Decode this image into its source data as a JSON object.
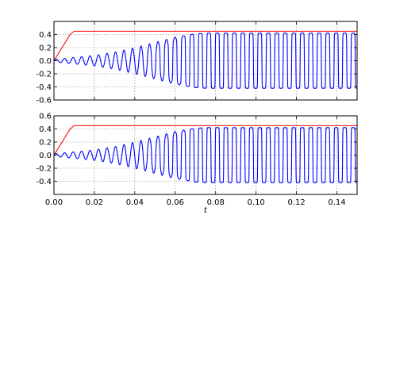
{
  "chart_data": [
    {
      "type": "line",
      "title": "",
      "xlabel": "",
      "ylabel": "",
      "xlim": [
        0,
        0.15
      ],
      "ylim": [
        -0.6,
        0.6
      ],
      "xticks": [
        0.0,
        0.02,
        0.04,
        0.06,
        0.08,
        0.1,
        0.12,
        0.14
      ],
      "xtick_labels": [],
      "yticks": [
        -0.6,
        -0.4,
        -0.2,
        0.0,
        0.2,
        0.4
      ],
      "ytick_labels": [
        "-0.6",
        "-0.4",
        "-0.2",
        "0.0",
        "0.2",
        "0.4"
      ],
      "grid": true,
      "series": [
        {
          "color": "#ff0000",
          "description": "ramp from 0 at t=0 to 0.45 at t=0.01, constant 0.45 thereafter",
          "x": [
            0.0,
            0.002,
            0.004,
            0.006,
            0.008,
            0.01,
            0.15
          ],
          "y": [
            0.0,
            0.1,
            0.2,
            0.3,
            0.4,
            0.45,
            0.45
          ]
        },
        {
          "color": "#0000ff",
          "description": "oscillation with growing amplitude, saturating near +/-0.42 after t~0.075",
          "envelope_t": [
            0.0,
            0.01,
            0.02,
            0.03,
            0.04,
            0.05,
            0.06,
            0.07,
            0.075,
            0.15
          ],
          "envelope_amp": [
            0.02,
            0.05,
            0.08,
            0.13,
            0.2,
            0.28,
            0.36,
            0.41,
            0.42,
            0.42
          ],
          "center": 0.0,
          "period": 0.0042
        }
      ]
    },
    {
      "type": "line",
      "title": "",
      "xlabel": "t",
      "ylabel": "",
      "xlim": [
        0,
        0.15
      ],
      "ylim": [
        -0.6,
        0.6
      ],
      "xticks": [
        0.0,
        0.02,
        0.04,
        0.06,
        0.08,
        0.1,
        0.12,
        0.14
      ],
      "xtick_labels": [
        "0.00",
        "0.02",
        "0.04",
        "0.06",
        "0.08",
        "0.10",
        "0.12",
        "0.14"
      ],
      "yticks": [
        -0.4,
        -0.2,
        0.0,
        0.2,
        0.4,
        0.6
      ],
      "ytick_labels": [
        "-0.4",
        "-0.2",
        "0.0",
        "0.2",
        "0.4",
        "0.6"
      ],
      "grid": true,
      "series": [
        {
          "color": "#ff0000",
          "description": "ramp from 0 at t=0 to 0.45 at t=0.01, constant 0.45 thereafter",
          "x": [
            0.0,
            0.002,
            0.004,
            0.006,
            0.008,
            0.01,
            0.15
          ],
          "y": [
            0.0,
            0.1,
            0.2,
            0.3,
            0.4,
            0.45,
            0.45
          ]
        },
        {
          "color": "#0000ff",
          "description": "oscillation with growing amplitude, saturating near +/-0.42 after t~0.075",
          "envelope_t": [
            0.0,
            0.01,
            0.02,
            0.03,
            0.04,
            0.05,
            0.06,
            0.07,
            0.075,
            0.15
          ],
          "envelope_amp": [
            0.02,
            0.05,
            0.08,
            0.13,
            0.2,
            0.28,
            0.36,
            0.41,
            0.42,
            0.42
          ],
          "center": 0.0,
          "period": 0.0042
        }
      ]
    }
  ]
}
